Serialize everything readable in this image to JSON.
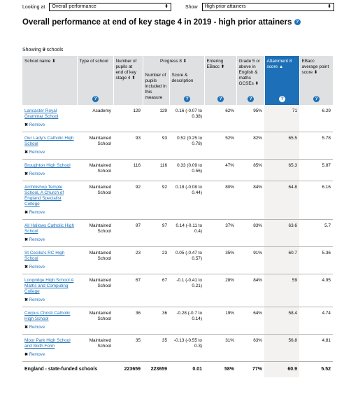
{
  "filters": [
    {
      "label": "Looking at",
      "value": "Overall performance"
    },
    {
      "label": "Show",
      "value": "High prior attainers"
    }
  ],
  "title": "Overall performance at end of key stage 4 in 2019 - high prior attainers",
  "showing": {
    "before": "Showing",
    "count": 9,
    "after": "schools"
  },
  "table": {
    "headers": {
      "name": "School name",
      "type": "Type of school",
      "pupils": "Number of pupils at end of key stage 4",
      "progress8": "Progress 8",
      "p8_pupils": "Number of pupils included in this measure",
      "p8_score": "Score & description",
      "entering": "Entering EBacc",
      "grade5": "Grade 5 or above in English & maths GCSEs",
      "att8": "Attainment 8 score",
      "ebacc": "EBacc average point score"
    },
    "remove_label": "Remove",
    "rows": [
      [
        "Lancaster Royal Grammar School",
        "Academy",
        129,
        129,
        0.16,
        "(-0.07 to 0.38)",
        "62%",
        "95%",
        71,
        6.29
      ],
      [
        "Our Lady's Catholic High School",
        "Maintained School",
        93,
        93,
        0.52,
        "(0.25 to 0.78)",
        "52%",
        "82%",
        65.5,
        5.78
      ],
      [
        "Broughton High School",
        "Maintained School",
        116,
        116,
        0.33,
        "(0.09 to 0.56)",
        "47%",
        "85%",
        65.3,
        5.87
      ],
      [
        "Archbishop Temple School, A Church of England Specialist College",
        "Maintained School",
        92,
        92,
        0.18,
        "(-0.08 to 0.44)",
        "80%",
        "84%",
        64.8,
        6.16
      ],
      [
        "All Hallows Catholic High School",
        "Maintained School",
        97,
        97,
        0.14,
        "(-0.11 to 0.4)",
        "37%",
        "83%",
        63.6,
        5.7
      ],
      [
        "St Cecilia's RC High School",
        "Maintained School",
        23,
        23,
        0.05,
        "(-0.47 to 0.57)",
        "35%",
        "91%",
        60.7,
        5.36
      ],
      [
        "Longridge High School A Maths and Computing College",
        "Maintained School",
        67,
        67,
        -0.1,
        "(-0.41 to 0.21)",
        "28%",
        "84%",
        59,
        4.95
      ],
      [
        "Corpus Christi Catholic High School",
        "Maintained School",
        36,
        36,
        -0.28,
        "(-0.7 to 0.14)",
        "19%",
        "64%",
        58.4,
        4.74
      ],
      [
        "Moor Park High School and Sixth Form",
        "Maintained School",
        35,
        35,
        -0.13,
        "(-0.55 to 0.3)",
        "31%",
        "63%",
        56.8,
        4.81
      ]
    ],
    "footer": [
      "England - state-funded schools",
      223659,
      223659,
      0.01,
      "58%",
      "77%",
      60.9,
      5.52
    ]
  }
}
